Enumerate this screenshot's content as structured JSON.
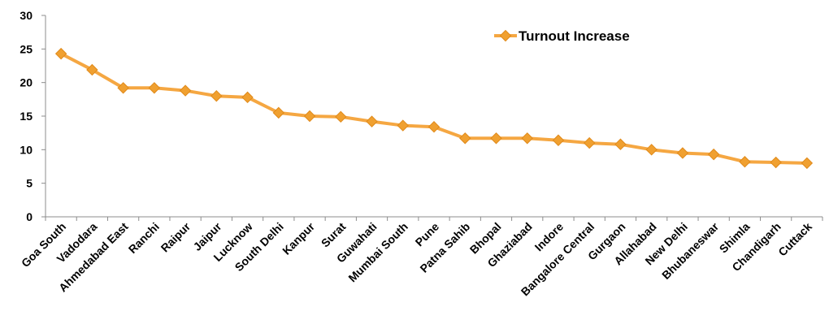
{
  "chart_data": {
    "type": "line",
    "title": "",
    "xlabel": "",
    "ylabel": "",
    "ylim": [
      0,
      30
    ],
    "yticks": [
      0,
      5,
      10,
      15,
      20,
      25,
      30
    ],
    "grid": false,
    "legend_position": "top-right",
    "categories": [
      "Goa South",
      "Vadodara",
      "Ahmedabad East",
      "Ranchi",
      "Raipur",
      "Jaipur",
      "Lucknow",
      "South Delhi",
      "Kanpur",
      "Surat",
      "Guwahati",
      "Mumbai South",
      "Pune",
      "Patna Sahib",
      "Bhopal",
      "Ghaziabad",
      "Indore",
      "Bangalore Central",
      "Gurgaon",
      "Allahabad",
      "New Delhi",
      "Bhubaneswar",
      "Shimla",
      "Chandigarh",
      "Cuttack"
    ],
    "series": [
      {
        "name": "Turnout Increase",
        "color": "#f5a742",
        "marker_color": "#f0a030",
        "values": [
          24.3,
          21.9,
          19.2,
          19.2,
          18.8,
          18.0,
          17.8,
          15.5,
          15.0,
          14.9,
          14.2,
          13.6,
          13.4,
          11.7,
          11.7,
          11.7,
          11.4,
          11.0,
          10.8,
          10.0,
          9.5,
          9.3,
          8.2,
          8.1,
          8.0
        ]
      }
    ]
  }
}
